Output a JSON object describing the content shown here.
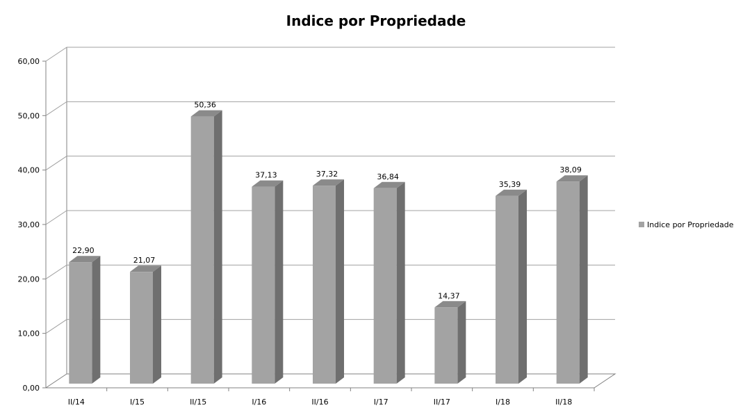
{
  "chart_data": {
    "type": "bar",
    "title": "Indice por Propriedade",
    "categories": [
      "II/14",
      "I/15",
      "II/15",
      "I/16",
      "II/16",
      "I/17",
      "II/17",
      "I/18",
      "II/18"
    ],
    "series": [
      {
        "name": "Indice por Propriedade",
        "values": [
          22.9,
          21.07,
          50.36,
          37.13,
          37.32,
          36.84,
          14.37,
          35.39,
          38.09
        ],
        "value_labels": [
          "22,90",
          "21,07",
          "50,36",
          "37,13",
          "37,32",
          "36,84",
          "14,37",
          "35,39",
          "38,09"
        ]
      }
    ],
    "ylim": [
      0,
      60
    ],
    "yticks": [
      0,
      10,
      20,
      30,
      40,
      50,
      60
    ],
    "ytick_labels": [
      "0,00",
      "10,00",
      "20,00",
      "30,00",
      "40,00",
      "50,00",
      "60,00"
    ],
    "grid": true,
    "legend_position": "right",
    "style": "3d-column",
    "colors": {
      "bar_front": "#a3a3a3",
      "bar_side": "#6f6f6f",
      "bar_top": "#8a8a8a",
      "grid": "#a0a0a0",
      "axis": "#808080"
    }
  }
}
